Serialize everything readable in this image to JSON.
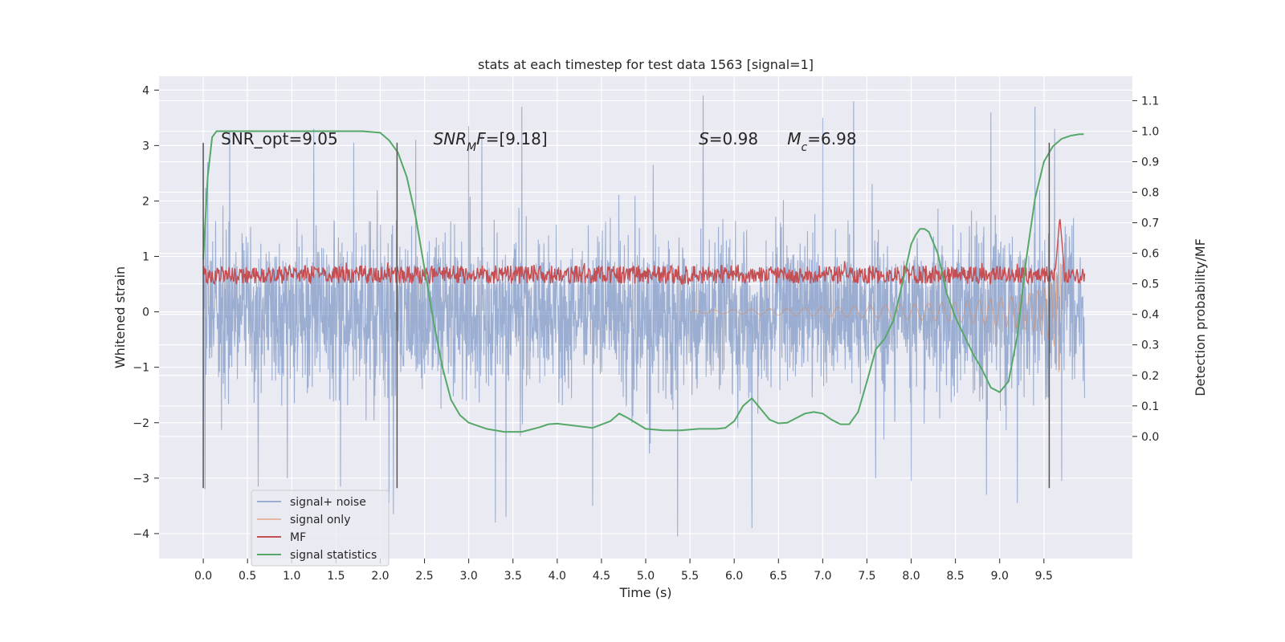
{
  "chart_data": {
    "type": "line",
    "title": "stats at each timestep for test data 1563 [signal=1]",
    "xlabel": "Time (s)",
    "ylabel": "Whitened strain",
    "ylabel_right": "Detection probability/MF",
    "xlim": [
      -0.5,
      10.5
    ],
    "ylim": [
      -4.45,
      4.25
    ],
    "ylim_right": [
      -0.4,
      1.18
    ],
    "x_ticks": [
      0.0,
      0.5,
      1.0,
      1.5,
      2.0,
      2.5,
      3.0,
      3.5,
      4.0,
      4.5,
      5.0,
      5.5,
      6.0,
      6.5,
      7.0,
      7.5,
      8.0,
      8.5,
      9.0,
      9.5
    ],
    "x_tick_labels": [
      "0.0",
      "0.5",
      "1.0",
      "1.5",
      "2.0",
      "2.5",
      "3.0",
      "3.5",
      "4.0",
      "4.5",
      "5.0",
      "5.5",
      "6.0",
      "6.5",
      "7.0",
      "7.5",
      "8.0",
      "8.5",
      "9.0",
      "9.5"
    ],
    "y_ticks": [
      -4,
      -3,
      -2,
      -1,
      0,
      1,
      2,
      3,
      4
    ],
    "y_tick_labels": [
      "−4",
      "−3",
      "−2",
      "−1",
      "0",
      "1",
      "2",
      "3",
      "4"
    ],
    "y_ticks_right": [
      0.0,
      0.1,
      0.2,
      0.3,
      0.4,
      0.5,
      0.6,
      0.7,
      0.8,
      0.9,
      1.0,
      1.1
    ],
    "y_tick_labels_right": [
      "0.0",
      "0.1",
      "0.2",
      "0.3",
      "0.4",
      "0.5",
      "0.6",
      "0.7",
      "0.8",
      "0.9",
      "1.0",
      "1.1"
    ],
    "grid": true,
    "legend_position": "lower-left",
    "annotations": [
      {
        "parts": [
          {
            "text": "SNR_opt=9.05",
            "italic": false
          }
        ],
        "x": 0.2,
        "y": 3.12
      },
      {
        "parts": [
          {
            "text": "SNR",
            "italic": true
          },
          {
            "text": "M",
            "italic": true,
            "sub": true
          },
          {
            "text": "F",
            "italic": true
          },
          {
            "text": "=[9.18]",
            "italic": false
          }
        ],
        "x": 2.6,
        "y": 3.12
      },
      {
        "parts": [
          {
            "text": "S",
            "italic": true
          },
          {
            "text": "=0.98",
            "italic": false
          }
        ],
        "x": 5.6,
        "y": 3.12
      },
      {
        "parts": [
          {
            "text": "M",
            "italic": true
          },
          {
            "text": "c",
            "italic": true,
            "sub": true
          },
          {
            "text": "=6.98",
            "italic": false
          }
        ],
        "x": 6.6,
        "y": 3.12
      }
    ],
    "vertical_lines": [
      {
        "x": 0.0,
        "y_range": [
          -3.18,
          3.05
        ]
      },
      {
        "x": 2.19,
        "y_range": [
          -3.18,
          3.05
        ]
      },
      {
        "x": 9.56,
        "y_range": [
          -3.18,
          3.05
        ]
      }
    ],
    "series": [
      {
        "name": "signal+ noise",
        "axis": "left",
        "color": "#4c72b0",
        "alpha": 0.5,
        "x_range": [
          0.0,
          9.96
        ],
        "envelope_core": 1.15,
        "envelope_typical_peak": 2.1,
        "peaks": [
          {
            "x": 0.02,
            "y": -3.2
          },
          {
            "x": 0.05,
            "y": 2.7
          },
          {
            "x": 0.3,
            "y": 3.25
          },
          {
            "x": 0.62,
            "y": -3.15
          },
          {
            "x": 0.95,
            "y": -3.0
          },
          {
            "x": 1.25,
            "y": 3.3
          },
          {
            "x": 1.55,
            "y": -3.15
          },
          {
            "x": 1.7,
            "y": 3.05
          },
          {
            "x": 2.1,
            "y": -3.45
          },
          {
            "x": 2.15,
            "y": -3.65
          },
          {
            "x": 2.4,
            "y": 3.1
          },
          {
            "x": 3.0,
            "y": 3.35
          },
          {
            "x": 3.15,
            "y": 3.2
          },
          {
            "x": 3.3,
            "y": -3.8
          },
          {
            "x": 3.42,
            "y": -3.7
          },
          {
            "x": 3.6,
            "y": 3.7
          },
          {
            "x": 4.4,
            "y": -3.5
          },
          {
            "x": 5.36,
            "y": -4.05
          },
          {
            "x": 5.65,
            "y": 3.9
          },
          {
            "x": 6.2,
            "y": -3.9
          },
          {
            "x": 7.0,
            "y": 3.5
          },
          {
            "x": 7.35,
            "y": 3.8
          },
          {
            "x": 7.6,
            "y": -3.0
          },
          {
            "x": 8.0,
            "y": -3.05
          },
          {
            "x": 8.85,
            "y": -3.3
          },
          {
            "x": 8.9,
            "y": 3.6
          },
          {
            "x": 9.2,
            "y": -3.45
          },
          {
            "x": 9.4,
            "y": 3.7
          },
          {
            "x": 9.62,
            "y": 3.3
          },
          {
            "x": 9.7,
            "y": -3.05
          }
        ]
      },
      {
        "name": "signal only",
        "axis": "left",
        "color": "#dd8452",
        "alpha": 0.5,
        "x": [
          5.5,
          6.0,
          6.5,
          7.0,
          7.5,
          8.0,
          8.5,
          9.0,
          9.3,
          9.5,
          9.6,
          9.65,
          9.68,
          9.7
        ],
        "amplitude": [
          0.02,
          0.04,
          0.06,
          0.08,
          0.11,
          0.14,
          0.18,
          0.25,
          0.32,
          0.42,
          0.55,
          0.75,
          1.3,
          0.3
        ]
      },
      {
        "name": "MF",
        "axis": "right",
        "color": "#c44e52",
        "x_range": [
          0.0,
          9.96
        ],
        "base": 0.52,
        "band": [
          0.5,
          0.56
        ],
        "peak": {
          "x": 9.68,
          "y": 0.72
        }
      },
      {
        "name": "signal statistics",
        "axis": "right",
        "color": "#55a868",
        "x": [
          0.0,
          0.05,
          0.1,
          0.15,
          0.3,
          0.5,
          1.0,
          1.5,
          1.8,
          2.0,
          2.1,
          2.2,
          2.3,
          2.4,
          2.5,
          2.6,
          2.7,
          2.8,
          2.9,
          3.0,
          3.2,
          3.4,
          3.6,
          3.8,
          3.9,
          4.0,
          4.2,
          4.4,
          4.6,
          4.7,
          4.8,
          5.0,
          5.2,
          5.4,
          5.6,
          5.8,
          5.9,
          6.0,
          6.1,
          6.2,
          6.3,
          6.4,
          6.5,
          6.6,
          6.7,
          6.8,
          6.9,
          7.0,
          7.1,
          7.2,
          7.3,
          7.4,
          7.5,
          7.6,
          7.7,
          7.8,
          7.9,
          8.0,
          8.05,
          8.1,
          8.15,
          8.2,
          8.3,
          8.4,
          8.5,
          8.6,
          8.7,
          8.8,
          8.9,
          9.0,
          9.1,
          9.2,
          9.3,
          9.4,
          9.5,
          9.6,
          9.7,
          9.8,
          9.9,
          9.95
        ],
        "y": [
          0.58,
          0.85,
          0.98,
          1.0,
          1.0,
          1.0,
          1.0,
          1.0,
          1.0,
          0.995,
          0.97,
          0.93,
          0.85,
          0.72,
          0.55,
          0.38,
          0.23,
          0.12,
          0.07,
          0.045,
          0.025,
          0.015,
          0.015,
          0.03,
          0.04,
          0.042,
          0.035,
          0.028,
          0.05,
          0.075,
          0.06,
          0.025,
          0.02,
          0.02,
          0.025,
          0.025,
          0.028,
          0.05,
          0.1,
          0.125,
          0.09,
          0.055,
          0.043,
          0.045,
          0.06,
          0.075,
          0.08,
          0.075,
          0.055,
          0.04,
          0.04,
          0.08,
          0.18,
          0.285,
          0.32,
          0.38,
          0.5,
          0.63,
          0.66,
          0.68,
          0.68,
          0.67,
          0.6,
          0.47,
          0.39,
          0.33,
          0.27,
          0.22,
          0.16,
          0.145,
          0.18,
          0.33,
          0.58,
          0.78,
          0.9,
          0.95,
          0.975,
          0.985,
          0.99,
          0.99
        ]
      }
    ]
  }
}
